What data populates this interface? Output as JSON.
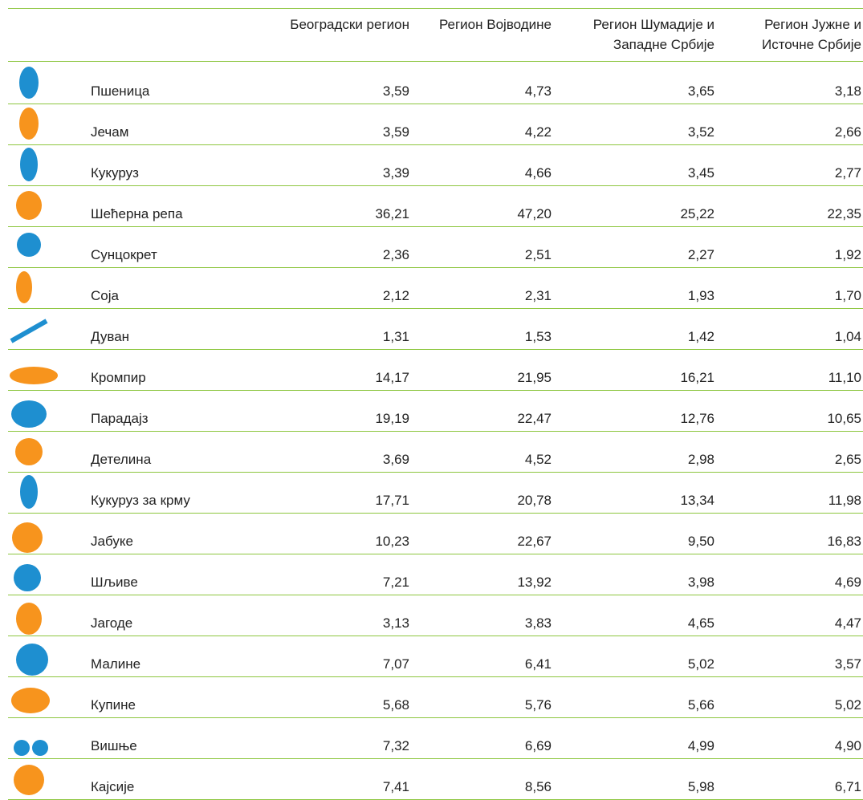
{
  "table": {
    "header": [
      "Београдски регион",
      "Регион Војводине",
      "Регион Шумадије и Западне Србије",
      "Регион Јужне и Источне Србије"
    ],
    "rows": [
      [
        "Пшеница",
        "3,59",
        "4,73",
        "3,65",
        "3,18"
      ],
      [
        "Јечам",
        "3,59",
        "4,22",
        "3,52",
        "2,66"
      ],
      [
        "Кукуруз",
        "3,39",
        "4,66",
        "3,45",
        "2,77"
      ],
      [
        "Шећерна репа",
        "36,21",
        "47,20",
        "25,22",
        "22,35"
      ],
      [
        "Сунцокрет",
        "2,36",
        "2,51",
        "2,27",
        "1,92"
      ],
      [
        "Соја",
        "2,12",
        "2,31",
        "1,93",
        "1,70"
      ],
      [
        "Дуван",
        "1,31",
        "1,53",
        "1,42",
        "1,04"
      ],
      [
        "Кромпир",
        "14,17",
        "21,95",
        "16,21",
        "11,10"
      ],
      [
        "Парадајз",
        "19,19",
        "22,47",
        "12,76",
        "10,65"
      ],
      [
        "Детелина",
        "3,69",
        "4,52",
        "2,98",
        "2,65"
      ],
      [
        "Кукуруз за крму",
        "17,71",
        "20,78",
        "13,34",
        "11,98"
      ],
      [
        "Јабуке",
        "10,23",
        "22,67",
        "9,50",
        "16,83"
      ],
      [
        "Шљиве",
        "7,21",
        "13,92",
        "3,98",
        "4,69"
      ],
      [
        "Јагоде",
        "3,13",
        "3,83",
        "4,65",
        "4,47"
      ],
      [
        "Малине",
        "7,07",
        "6,41",
        "5,02",
        "3,57"
      ],
      [
        "Купине",
        "5,68",
        "5,76",
        "5,66",
        "5,02"
      ],
      [
        "Вишње",
        "7,32",
        "6,69",
        "4,99",
        "4,90"
      ],
      [
        "Кајсије",
        "7,41",
        "8,56",
        "5,98",
        "6,71"
      ]
    ]
  }
}
